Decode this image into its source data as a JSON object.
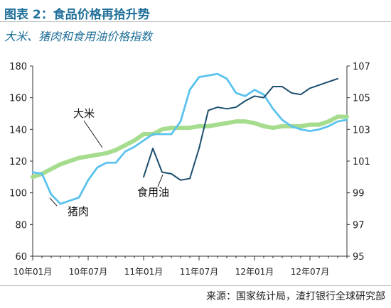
{
  "title": "图表 2：食品价格再拾升势",
  "subtitle": "大米、猪肉和食用油价格指数",
  "source": "来源：国家统计局，渣打银行全球研究部",
  "chart_data": {
    "type": "line",
    "x": [
      "10年01月",
      "10年02月",
      "10年03月",
      "10年04月",
      "10年05月",
      "10年06月",
      "10年07月",
      "10年08月",
      "10年09月",
      "10年10月",
      "10年11月",
      "10年12月",
      "11年01月",
      "11年02月",
      "11年03月",
      "11年04月",
      "11年05月",
      "11年06月",
      "11年07月",
      "11年08月",
      "11年09月",
      "11年10月",
      "11年11月",
      "11年12月",
      "12年01月",
      "12年02月",
      "12年03月",
      "12年04月",
      "12年05月",
      "12年06月",
      "12年07月",
      "12年08月",
      "12年09月",
      "12年10月",
      "12年11月"
    ],
    "xticks": [
      "10年01月",
      "10年07月",
      "11年01月",
      "11年07月",
      "12年01月",
      "12年07月"
    ],
    "left_axis": {
      "ylim": [
        60,
        180
      ],
      "ticks": [
        60,
        80,
        100,
        120,
        140,
        160,
        180
      ]
    },
    "right_axis": {
      "ylim": [
        95,
        107
      ],
      "ticks": [
        95,
        97,
        99,
        101,
        103,
        105,
        107
      ]
    },
    "series": [
      {
        "name": "大米",
        "axis": "left",
        "color": "#a6dc8e",
        "values": [
          110,
          112,
          115,
          118,
          120,
          122,
          123,
          124,
          125,
          127,
          130,
          133,
          137,
          137,
          140,
          141,
          141,
          141,
          142,
          142,
          143,
          144,
          145,
          145,
          144,
          142,
          141,
          142,
          142,
          142,
          143,
          143,
          145,
          148,
          148
        ]
      },
      {
        "name": "猪肉",
        "axis": "left",
        "color": "#5bc3ee",
        "values": [
          113,
          112,
          99,
          93,
          95,
          97,
          108,
          116,
          119,
          119,
          126,
          129,
          133,
          137,
          137,
          137,
          145,
          165,
          173,
          174,
          175,
          172,
          163,
          161,
          165,
          162,
          153,
          146,
          142,
          140,
          139,
          140,
          142,
          145,
          146
        ]
      },
      {
        "name": "食用油",
        "axis": "right",
        "color": "#1b4e6e",
        "values": [
          null,
          null,
          null,
          null,
          null,
          null,
          null,
          null,
          null,
          null,
          null,
          null,
          100.0,
          101.8,
          100.3,
          100.2,
          99.8,
          99.9,
          101.8,
          104.2,
          104.4,
          104.3,
          104.4,
          104.8,
          105.1,
          105.0,
          105.7,
          105.7,
          105.3,
          105.2,
          105.6,
          105.8,
          106.0,
          106.2,
          null
        ]
      }
    ],
    "labels": [
      {
        "text": "大米",
        "series": "大米"
      },
      {
        "text": "猪肉",
        "series": "猪肉"
      },
      {
        "text": "食用油",
        "series": "食用油"
      }
    ]
  }
}
